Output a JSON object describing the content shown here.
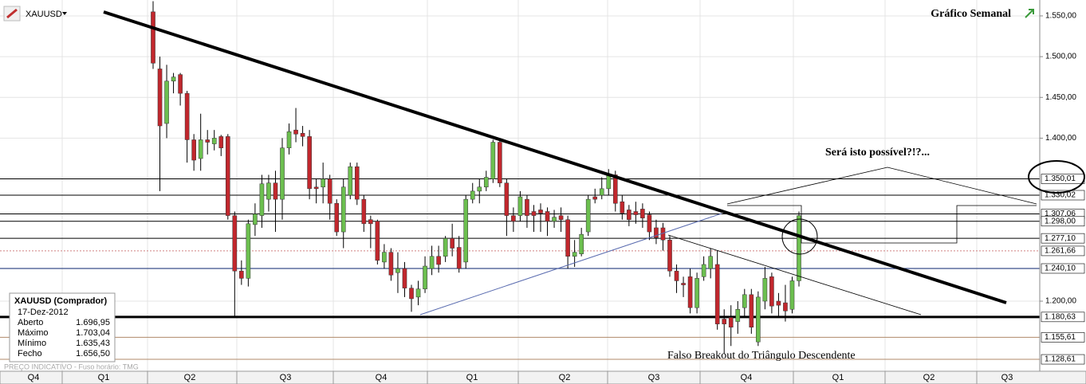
{
  "chart_data": {
    "type": "candlestick",
    "symbol": "XAUUSD",
    "title": "Gráfico Semanal",
    "annotations": [
      "Será isto possível?!?...",
      "Falso Breakout do Triângulo Descendente"
    ],
    "footer": "PREÇO INDICATIVO - Fuso horário: TMG",
    "info": {
      "title": "XAUUSD (Comprador)",
      "date": "17-Dez-2012",
      "rows": [
        [
          "Aberto",
          "1.696,95"
        ],
        [
          "Máximo",
          "1.703,04"
        ],
        [
          "Mínimo",
          "1.635,43"
        ],
        [
          "Fecho",
          "1.656,50"
        ]
      ]
    },
    "categories": [
      "Q4",
      "Q1",
      "Q2",
      "Q3",
      "Q4",
      "Q1",
      "Q2",
      "Q3",
      "Q4",
      "Q1",
      "Q2",
      "Q3"
    ],
    "ylim": [
      1114,
      1569.5
    ],
    "yticks": [
      {
        "value": 1550,
        "label": "1.550,00"
      },
      {
        "value": 1500,
        "label": "1.500,00"
      },
      {
        "value": 1450,
        "label": "1.450,00"
      },
      {
        "value": 1400,
        "label": "1.400,00"
      },
      {
        "value": 1200,
        "label": "1.200,00"
      }
    ],
    "levels": [
      {
        "value": 1350.01,
        "label": "1.350,01",
        "color": "#000000",
        "width": 1
      },
      {
        "value": 1330.02,
        "label": "1.330,02",
        "color": "#000000",
        "width": 1
      },
      {
        "value": 1307.06,
        "label": "1.307,06",
        "color": "#000000",
        "width": 1
      },
      {
        "value": 1298,
        "label": "1.298,00",
        "color": "#000000",
        "width": 1
      },
      {
        "value": 1277.1,
        "label": "1.277,10",
        "color": "#000000",
        "width": 1
      },
      {
        "value": 1261.66,
        "label": "1.261,66",
        "color": "#d08080",
        "width": 1
      },
      {
        "value": 1240.1,
        "label": "1.240,10",
        "color": "#3a4f8a",
        "width": 1.2
      },
      {
        "value": 1180.63,
        "label": "1.180,63",
        "color": "#000000",
        "width": 3
      },
      {
        "value": 1155.61,
        "label": "1.155,61",
        "color": "#b08a6a",
        "width": 1
      },
      {
        "value": 1128.61,
        "label": "1.128,61",
        "color": "#b08a6a",
        "width": 1
      }
    ],
    "up_color": "#6cbf4f",
    "down_color": "#c1272d",
    "candles": [
      [
        1555,
        1568,
        1485,
        1492
      ],
      [
        1485,
        1500,
        1335,
        1415
      ],
      [
        1418,
        1490,
        1400,
        1470
      ],
      [
        1470,
        1480,
        1455,
        1475
      ],
      [
        1478,
        1480,
        1440,
        1455
      ],
      [
        1455,
        1458,
        1370,
        1398
      ],
      [
        1398,
        1405,
        1360,
        1373
      ],
      [
        1375,
        1430,
        1360,
        1398
      ],
      [
        1398,
        1410,
        1380,
        1395
      ],
      [
        1393,
        1410,
        1385,
        1400
      ],
      [
        1402,
        1404,
        1378,
        1388
      ],
      [
        1402,
        1405,
        1300,
        1305
      ],
      [
        1305,
        1310,
        1180,
        1237
      ],
      [
        1237,
        1250,
        1220,
        1228
      ],
      [
        1228,
        1300,
        1218,
        1295
      ],
      [
        1294,
        1320,
        1280,
        1307
      ],
      [
        1305,
        1355,
        1290,
        1344
      ],
      [
        1325,
        1355,
        1310,
        1345
      ],
      [
        1345,
        1360,
        1285,
        1325
      ],
      [
        1325,
        1400,
        1300,
        1388
      ],
      [
        1388,
        1418,
        1380,
        1408
      ],
      [
        1410,
        1437,
        1395,
        1405
      ],
      [
        1406,
        1415,
        1390,
        1402
      ],
      [
        1402,
        1410,
        1325,
        1338
      ],
      [
        1340,
        1350,
        1320,
        1338
      ],
      [
        1340,
        1370,
        1320,
        1350
      ],
      [
        1350,
        1355,
        1300,
        1320
      ],
      [
        1320,
        1325,
        1280,
        1285
      ],
      [
        1285,
        1350,
        1265,
        1340
      ],
      [
        1330,
        1370,
        1325,
        1365
      ],
      [
        1365,
        1370,
        1318,
        1325
      ],
      [
        1325,
        1330,
        1285,
        1295
      ],
      [
        1300,
        1305,
        1265,
        1295
      ],
      [
        1298,
        1300,
        1245,
        1250
      ],
      [
        1248,
        1270,
        1240,
        1260
      ],
      [
        1260,
        1265,
        1225,
        1232
      ],
      [
        1235,
        1260,
        1210,
        1240
      ],
      [
        1240,
        1248,
        1205,
        1216
      ],
      [
        1216,
        1220,
        1187,
        1203
      ],
      [
        1205,
        1225,
        1195,
        1215
      ],
      [
        1215,
        1255,
        1210,
        1243
      ],
      [
        1240,
        1268,
        1232,
        1255
      ],
      [
        1255,
        1268,
        1235,
        1245
      ],
      [
        1255,
        1280,
        1248,
        1277
      ],
      [
        1277,
        1295,
        1255,
        1265
      ],
      [
        1266,
        1280,
        1235,
        1240
      ],
      [
        1248,
        1330,
        1240,
        1325
      ],
      [
        1325,
        1345,
        1320,
        1335
      ],
      [
        1335,
        1350,
        1320,
        1340
      ],
      [
        1340,
        1360,
        1335,
        1352
      ],
      [
        1350,
        1398,
        1345,
        1395
      ],
      [
        1395,
        1400,
        1340,
        1345
      ],
      [
        1345,
        1350,
        1280,
        1305
      ],
      [
        1305,
        1315,
        1285,
        1298
      ],
      [
        1305,
        1335,
        1298,
        1328
      ],
      [
        1325,
        1330,
        1290,
        1305
      ],
      [
        1310,
        1318,
        1285,
        1305
      ],
      [
        1312,
        1320,
        1285,
        1308
      ],
      [
        1310,
        1315,
        1280,
        1298
      ],
      [
        1298,
        1312,
        1290,
        1303
      ],
      [
        1305,
        1315,
        1285,
        1300
      ],
      [
        1300,
        1305,
        1240,
        1255
      ],
      [
        1255,
        1275,
        1242,
        1260
      ],
      [
        1258,
        1290,
        1255,
        1282
      ],
      [
        1285,
        1330,
        1280,
        1325
      ],
      [
        1328,
        1338,
        1320,
        1325
      ],
      [
        1330,
        1352,
        1325,
        1338
      ],
      [
        1338,
        1362,
        1330,
        1355
      ],
      [
        1355,
        1360,
        1310,
        1320
      ],
      [
        1322,
        1330,
        1300,
        1308
      ],
      [
        1312,
        1318,
        1292,
        1300
      ],
      [
        1310,
        1322,
        1295,
        1306
      ],
      [
        1313,
        1320,
        1290,
        1302
      ],
      [
        1306,
        1310,
        1275,
        1285
      ],
      [
        1290,
        1300,
        1270,
        1278
      ],
      [
        1290,
        1296,
        1262,
        1275
      ],
      [
        1275,
        1280,
        1230,
        1237
      ],
      [
        1237,
        1245,
        1210,
        1225
      ],
      [
        1222,
        1230,
        1205,
        1220
      ],
      [
        1230,
        1240,
        1185,
        1192
      ],
      [
        1192,
        1235,
        1185,
        1228
      ],
      [
        1230,
        1255,
        1225,
        1245
      ],
      [
        1240,
        1265,
        1228,
        1255
      ],
      [
        1245,
        1262,
        1165,
        1172
      ],
      [
        1178,
        1190,
        1135,
        1172
      ],
      [
        1180,
        1195,
        1145,
        1168
      ],
      [
        1175,
        1200,
        1160,
        1190
      ],
      [
        1192,
        1215,
        1180,
        1208
      ],
      [
        1208,
        1215,
        1160,
        1168
      ],
      [
        1150,
        1212,
        1145,
        1205
      ],
      [
        1200,
        1242,
        1190,
        1228
      ],
      [
        1230,
        1235,
        1185,
        1194
      ],
      [
        1200,
        1210,
        1180,
        1195
      ],
      [
        1198,
        1220,
        1175,
        1188
      ],
      [
        1190,
        1230,
        1185,
        1225
      ],
      [
        1225,
        1310,
        1218,
        1305
      ]
    ]
  }
}
